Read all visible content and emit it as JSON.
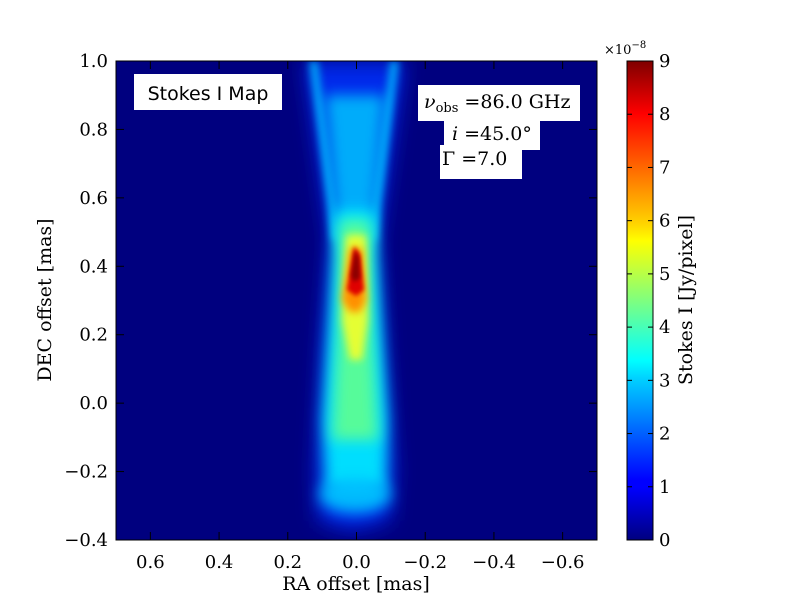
{
  "chart_data": {
    "type": "heatmap",
    "title": "",
    "xlabel": "RA offset [mas]",
    "ylabel": "DEC offset [mas]",
    "xlim": [
      0.7,
      -0.7
    ],
    "ylim": [
      -0.4,
      1.0
    ],
    "x_ticks": [
      "0.6",
      "0.4",
      "0.2",
      "0.0",
      "−0.2",
      "−0.4",
      "−0.6"
    ],
    "x_tick_values": [
      0.6,
      0.4,
      0.2,
      0.0,
      -0.2,
      -0.4,
      -0.6
    ],
    "y_ticks": [
      "−0.4",
      "−0.2",
      "0.0",
      "0.2",
      "0.4",
      "0.6",
      "0.8",
      "1.0"
    ],
    "y_tick_values": [
      -0.4,
      -0.2,
      0.0,
      0.2,
      0.4,
      0.6,
      0.8,
      1.0
    ],
    "annotations": {
      "map_label": "Stokes I Map",
      "nu_symbol": "ν",
      "nu_subscript": "obs",
      "nu_value": " =86.0 GHz",
      "i_symbol": "i",
      "i_value": " =45.0°",
      "gamma_symbol": "Γ",
      "gamma_value": " =7.0"
    },
    "colorbar": {
      "label": "Stokes I [Jy/pixel]",
      "multiplier_base": "×10",
      "multiplier_exp": "−8",
      "range": [
        0,
        9
      ],
      "ticks": [
        "0",
        "1",
        "2",
        "3",
        "4",
        "5",
        "6",
        "7",
        "8",
        "9"
      ],
      "tick_values": [
        0,
        1,
        2,
        3,
        4,
        5,
        6,
        7,
        8,
        9
      ],
      "colormap": "jet"
    },
    "peak": {
      "ra": 0.0,
      "dec": 0.39,
      "value": 9.0
    },
    "background_color": "#00007f"
  }
}
